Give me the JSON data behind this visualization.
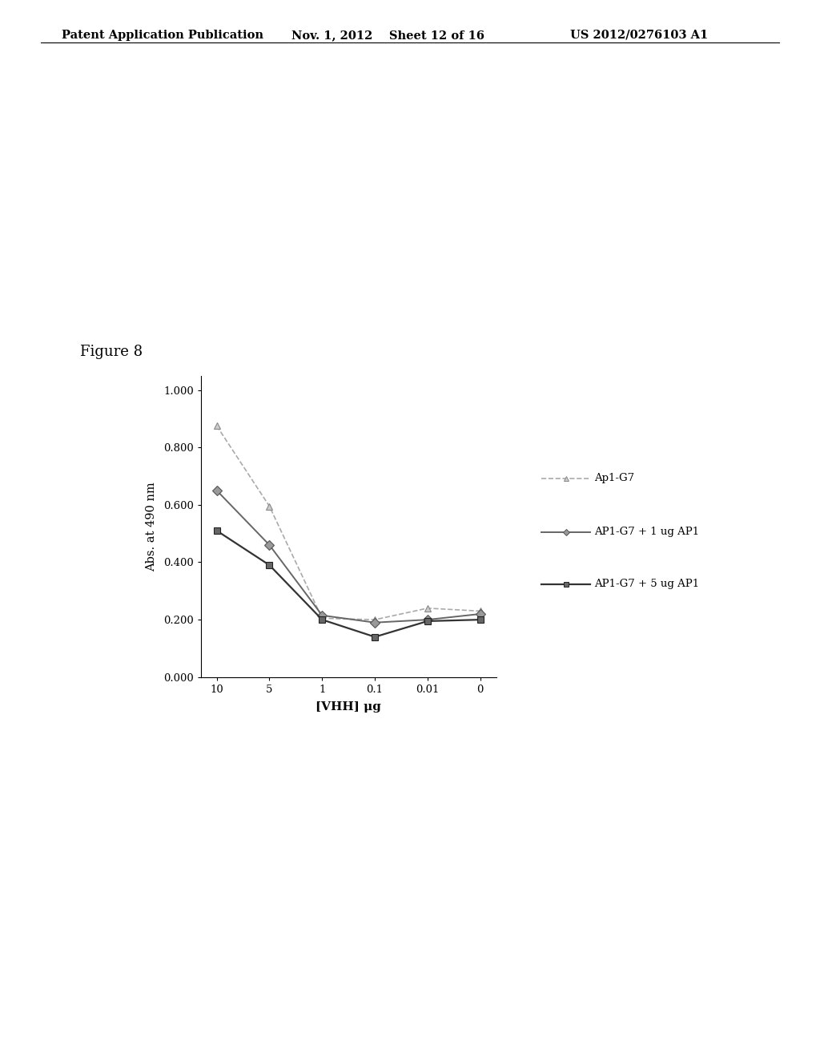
{
  "x_labels": [
    "10",
    "5",
    "1",
    "0.1",
    "0.01",
    "0"
  ],
  "x_positions": [
    0,
    1,
    2,
    3,
    4,
    5
  ],
  "series": {
    "Ap1-G7": {
      "values": [
        0.875,
        0.595,
        0.205,
        0.2,
        0.24,
        0.23
      ],
      "color": "#aaaaaa",
      "linestyle": "--",
      "marker": "^",
      "markersize": 6,
      "linewidth": 1.2,
      "label": "Ap1-G7",
      "markerfacecolor": "#cccccc",
      "markeredgecolor": "#888888"
    },
    "AP1-G7+1ug": {
      "values": [
        0.65,
        0.46,
        0.215,
        0.19,
        0.2,
        0.22
      ],
      "color": "#666666",
      "linestyle": "-",
      "marker": "D",
      "markersize": 6,
      "linewidth": 1.4,
      "label": "AP1-G7 + 1 ug AP1",
      "markerfacecolor": "#999999",
      "markeredgecolor": "#555555"
    },
    "AP1-G7+5ug": {
      "values": [
        0.51,
        0.39,
        0.2,
        0.14,
        0.195,
        0.2
      ],
      "color": "#333333",
      "linestyle": "-",
      "marker": "s",
      "markersize": 6,
      "linewidth": 1.6,
      "label": "AP1-G7 + 5 ug AP1",
      "markerfacecolor": "#666666",
      "markeredgecolor": "#222222"
    }
  },
  "ylabel": "Abs. at 490 nm",
  "xlabel": "[VHH] μg",
  "ylim": [
    0.0,
    1.05
  ],
  "yticks": [
    0.0,
    0.2,
    0.4,
    0.6,
    0.8,
    1.0
  ],
  "figure_label": "Figure 8",
  "header_left": "Patent Application Publication",
  "header_middle": "Nov. 1, 2012    Sheet 12 of 16",
  "header_right": "US 2012/0276103 A1",
  "background_color": "#ffffff",
  "plot_bg_color": "#ffffff"
}
